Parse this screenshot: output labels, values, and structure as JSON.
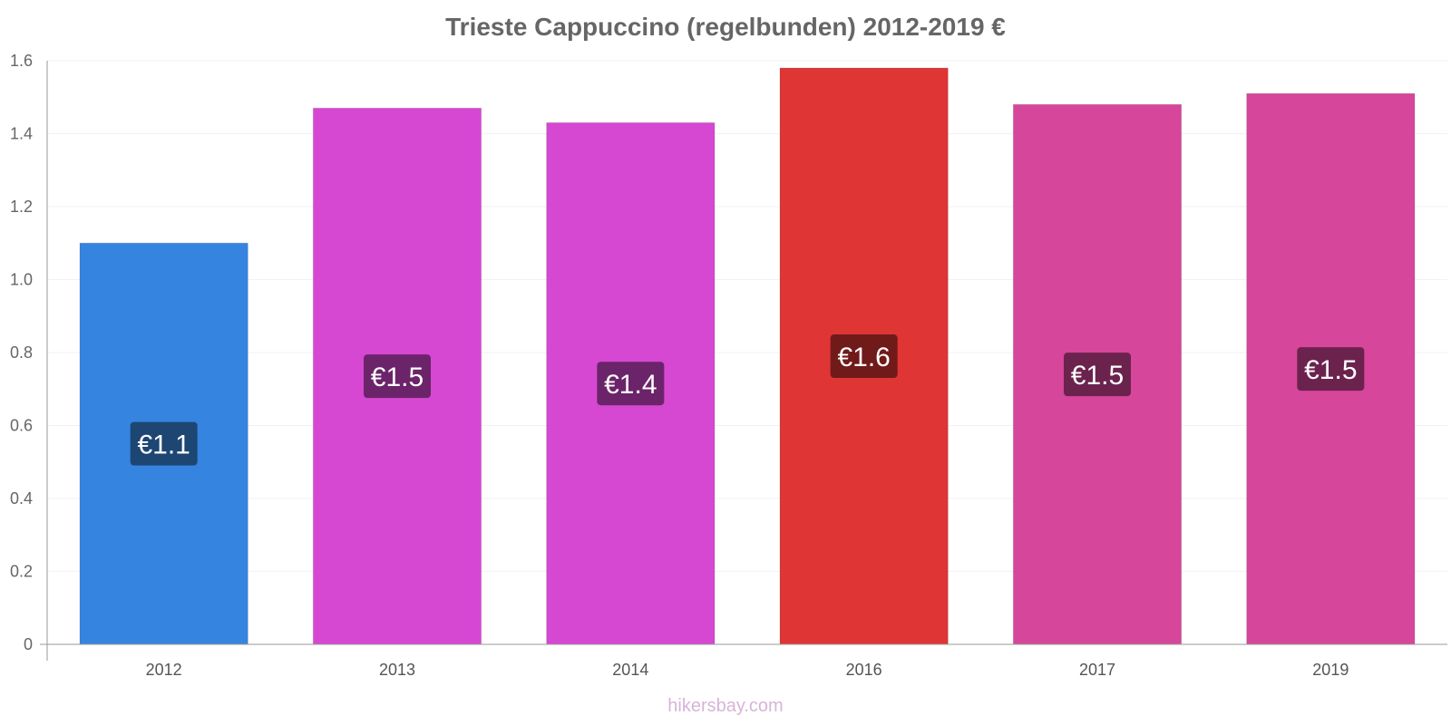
{
  "chart_data": {
    "type": "bar",
    "title": "Trieste Cappuccino (regelbunden) 2012-2019 €",
    "xlabel": "",
    "ylabel": "",
    "categories": [
      "2012",
      "2013",
      "2014",
      "2016",
      "2017",
      "2019"
    ],
    "values": [
      1.1,
      1.47,
      1.43,
      1.58,
      1.48,
      1.51
    ],
    "data_labels": [
      "€1.1",
      "€1.5",
      "€1.4",
      "€1.6",
      "€1.5",
      "€1.5"
    ],
    "bar_colors": [
      "#3584E0",
      "#D648D2",
      "#D648D2",
      "#E03535",
      "#D6469B",
      "#D6469B"
    ],
    "label_box_colors": [
      "#1D4672",
      "#6B2469",
      "#6B2469",
      "#701A1A",
      "#6B234E",
      "#6B234E"
    ],
    "ylim": [
      0,
      1.6
    ],
    "yticks": [
      "0",
      "0.2",
      "0.4",
      "0.6",
      "0.8",
      "1.0",
      "1.2",
      "1.4",
      "1.6"
    ],
    "grid": true,
    "watermark": "hikersbay.com"
  }
}
